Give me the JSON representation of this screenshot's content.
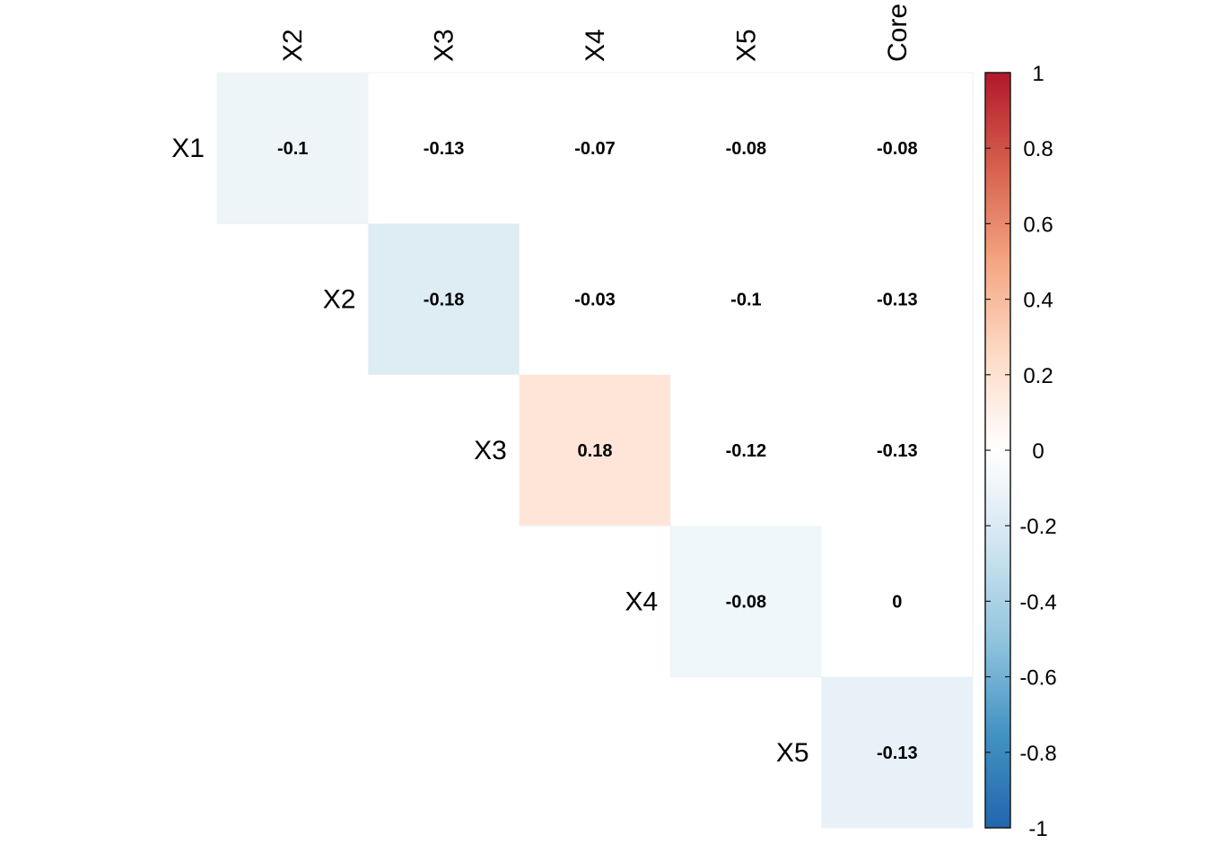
{
  "chart_data": {
    "type": "heatmap",
    "title": "",
    "row_labels": [
      "X1",
      "X2",
      "X3",
      "X4",
      "X5"
    ],
    "col_labels": [
      "X2",
      "X3",
      "X4",
      "X5",
      "Core"
    ],
    "cells": [
      {
        "row": 0,
        "col": 0,
        "value": -0.1,
        "label": "-0.1"
      },
      {
        "row": 0,
        "col": 1,
        "value": -0.13,
        "label": "-0.13"
      },
      {
        "row": 0,
        "col": 2,
        "value": -0.07,
        "label": "-0.07"
      },
      {
        "row": 0,
        "col": 3,
        "value": -0.08,
        "label": "-0.08"
      },
      {
        "row": 0,
        "col": 4,
        "value": -0.08,
        "label": "-0.08"
      },
      {
        "row": 1,
        "col": 1,
        "value": -0.18,
        "label": "-0.18"
      },
      {
        "row": 1,
        "col": 2,
        "value": -0.03,
        "label": "-0.03"
      },
      {
        "row": 1,
        "col": 3,
        "value": -0.1,
        "label": "-0.1"
      },
      {
        "row": 1,
        "col": 4,
        "value": -0.13,
        "label": "-0.13"
      },
      {
        "row": 2,
        "col": 2,
        "value": 0.18,
        "label": "0.18"
      },
      {
        "row": 2,
        "col": 3,
        "value": -0.12,
        "label": "-0.12"
      },
      {
        "row": 2,
        "col": 4,
        "value": -0.13,
        "label": "-0.13"
      },
      {
        "row": 3,
        "col": 3,
        "value": -0.08,
        "label": "-0.08"
      },
      {
        "row": 3,
        "col": 4,
        "value": 0,
        "label": "0"
      },
      {
        "row": 4,
        "col": 4,
        "value": -0.13,
        "label": "-0.13"
      }
    ],
    "colorbar": {
      "range": [
        -1,
        1
      ],
      "ticks": [
        "1",
        "0.8",
        "0.6",
        "0.4",
        "0.2",
        "0",
        "-0.2",
        "-0.4",
        "-0.6",
        "-0.8",
        "-1"
      ],
      "tick_values": [
        1,
        0.8,
        0.6,
        0.4,
        0.2,
        0,
        -0.2,
        -0.4,
        -0.6,
        -0.8,
        -1
      ]
    },
    "colors": {
      "high": "#b2182b",
      "mid_high": "#d6604d",
      "low_high": "#f4a582",
      "pale_high": "#fddbc7",
      "zero": "#ffffff",
      "pale_low": "#d1e5f0",
      "low_low": "#92c5de",
      "mid_low": "#4393c3",
      "low": "#2166ac"
    }
  }
}
